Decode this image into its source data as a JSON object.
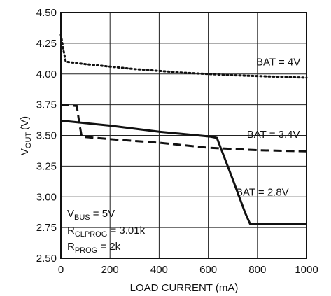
{
  "chart_data": {
    "type": "line",
    "xlabel": "LOAD CURRENT (mA)",
    "ylabel": "V",
    "ylabel_sub": "OUT",
    "ylabel_unit": "(V)",
    "xlim": [
      0,
      1000
    ],
    "ylim": [
      2.5,
      4.5
    ],
    "x_ticks": [
      0,
      200,
      400,
      600,
      800,
      1000
    ],
    "y_ticks": [
      2.5,
      2.75,
      3.0,
      3.25,
      3.5,
      3.75,
      4.0,
      4.25,
      4.5
    ],
    "y_tick_labels": [
      "2.50",
      "2.75",
      "3.00",
      "3.25",
      "3.50",
      "3.75",
      "4.00",
      "4.25",
      "4.50"
    ],
    "grid": true,
    "legend": "none",
    "series": [
      {
        "name": "BAT = 4V",
        "style": "dotted",
        "color": "#111111",
        "points": [
          [
            0,
            4.32
          ],
          [
            10,
            4.2
          ],
          [
            20,
            4.1
          ],
          [
            100,
            4.08
          ],
          [
            300,
            4.04
          ],
          [
            500,
            4.01
          ],
          [
            700,
            3.99
          ],
          [
            1000,
            3.97
          ]
        ]
      },
      {
        "name": "BAT = 3.4V",
        "style": "dashed",
        "color": "#111111",
        "points": [
          [
            0,
            3.75
          ],
          [
            65,
            3.74
          ],
          [
            75,
            3.6
          ],
          [
            85,
            3.49
          ],
          [
            200,
            3.47
          ],
          [
            400,
            3.44
          ],
          [
            600,
            3.4
          ],
          [
            800,
            3.38
          ],
          [
            1000,
            3.37
          ]
        ]
      },
      {
        "name": "BAT = 2.8V",
        "style": "solid",
        "color": "#111111",
        "points": [
          [
            0,
            3.62
          ],
          [
            200,
            3.58
          ],
          [
            400,
            3.53
          ],
          [
            610,
            3.49
          ],
          [
            635,
            3.48
          ],
          [
            700,
            3.14
          ],
          [
            750,
            2.87
          ],
          [
            770,
            2.78
          ],
          [
            1000,
            2.78
          ]
        ]
      }
    ],
    "annotations": [
      {
        "name": "bat-4v-label",
        "text": "BAT = 4V",
        "x": 885,
        "y": 4.07
      },
      {
        "name": "bat-34v-label",
        "text": "BAT = 3.4V",
        "x": 865,
        "y": 3.48
      },
      {
        "name": "bat-28v-label",
        "text": "BAT = 2.8V",
        "x": 820,
        "y": 3.01
      }
    ],
    "conditions": [
      {
        "name": "vbus-condition",
        "main": "V",
        "sub": "BUS",
        "rest": " = 5V"
      },
      {
        "name": "rclprog-condition",
        "main": "R",
        "sub": "CLPROG",
        "rest": " = 3.01k"
      },
      {
        "name": "rprog-condition",
        "main": "R",
        "sub": "PROG",
        "rest": " = 2k"
      }
    ]
  }
}
